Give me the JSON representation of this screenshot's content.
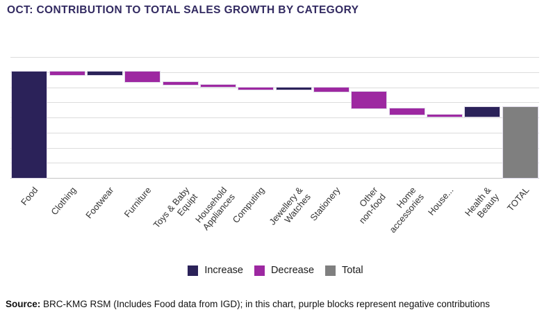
{
  "title": "OCT: CONTRIBUTION TO TOTAL SALES GROWTH BY CATEGORY",
  "colors": {
    "increase": "#2b2259",
    "decrease": "#9d28a1",
    "total": "#7f7f7f",
    "title_text": "#322a61",
    "gridline": "#dcdcdc",
    "axis_line": "#c4c4c4",
    "label_text": "#333333"
  },
  "legend": [
    {
      "label": "Increase",
      "type": "increase"
    },
    {
      "label": "Decrease",
      "type": "decrease"
    },
    {
      "label": "Total",
      "type": "total"
    }
  ],
  "source": {
    "prefix": "Source:",
    "text": " BRC-KMG RSM (Includes Food data from IGD); in this chart, purple blocks represent negative contributions"
  },
  "chart_data": {
    "type": "bar",
    "subtype": "waterfall",
    "title": "OCT: CONTRIBUTION TO TOTAL SALES GROWTH BY CATEGORY",
    "xlabel": "",
    "ylabel": "",
    "y_axis": {
      "tick_labels_visible": false,
      "min": 0,
      "max": 8,
      "gridline_divisions": 8
    },
    "legend_position": "bottom-center",
    "grid": true,
    "note": "No numeric axis labels shown in source image; values are estimated in gridline units read from the plot.",
    "categories": [
      "Food",
      "Clothing",
      "Footwear",
      "Furniture",
      "Toys & Baby Equipt",
      "Household Appliances",
      "Computing",
      "Jewellery & Watches",
      "Stationery",
      "Other non-food",
      "Home accessories",
      "House...",
      "Health & Beauty",
      "TOTAL"
    ],
    "items": [
      {
        "label": "Food",
        "display_label": "Food",
        "slug": "food",
        "type": "increase",
        "value": 7.03
      },
      {
        "label": "Clothing",
        "display_label": "Clothing",
        "slug": "clothing",
        "type": "decrease",
        "value": -0.21
      },
      {
        "label": "Footwear",
        "display_label": "Footwear",
        "slug": "footwear",
        "type": "increase",
        "value": 0.21
      },
      {
        "label": "Furniture",
        "display_label": "Furniture",
        "slug": "furniture",
        "type": "decrease",
        "value": -0.67
      },
      {
        "label": "Toys & Baby Equipt",
        "display_label": "Toys & Baby\nEquipt",
        "slug": "toys-baby-equipt",
        "type": "decrease",
        "value": -0.18
      },
      {
        "label": "Household Appliances",
        "display_label": "Household\nAppliances",
        "slug": "household-appliances",
        "type": "decrease",
        "value": -0.18
      },
      {
        "label": "Computing",
        "display_label": "Computing",
        "slug": "computing",
        "type": "decrease",
        "value": -0.18
      },
      {
        "label": "Jewellery & Watches",
        "display_label": "Jewellery &\nWatches",
        "slug": "jewellery-watches",
        "type": "increase",
        "value": 0.18
      },
      {
        "label": "Stationery",
        "display_label": "Stationery",
        "slug": "stationery",
        "type": "decrease",
        "value": -0.28
      },
      {
        "label": "Other non-food",
        "display_label": "Other\nnon-food",
        "slug": "other-non-food",
        "type": "decrease",
        "value": -1.13
      },
      {
        "label": "Home accessories",
        "display_label": "Home\naccessories",
        "slug": "home-accessories",
        "type": "decrease",
        "value": -0.41
      },
      {
        "label": "House...",
        "display_label": "House...",
        "slug": "house",
        "type": "decrease",
        "value": -0.14
      },
      {
        "label": "Health & Beauty",
        "display_label": "Health &\nBeauty",
        "slug": "health-beauty",
        "type": "increase",
        "value": 0.64
      },
      {
        "label": "TOTAL",
        "display_label": "TOTAL",
        "slug": "total",
        "type": "total",
        "value": 4.68
      }
    ]
  }
}
